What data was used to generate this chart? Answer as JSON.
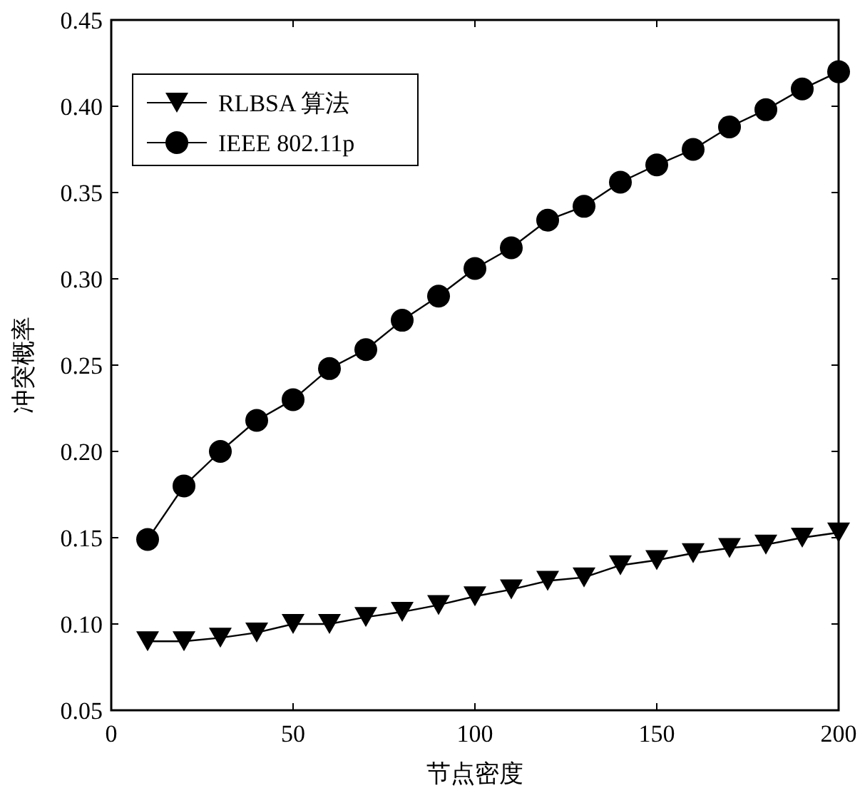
{
  "chart_data": {
    "type": "line",
    "xlabel": "节点密度",
    "ylabel": "冲突概率",
    "x": [
      10,
      20,
      30,
      40,
      50,
      60,
      70,
      80,
      90,
      100,
      110,
      120,
      130,
      140,
      150,
      160,
      170,
      180,
      190,
      200
    ],
    "series": [
      {
        "name": "RLBSA 算法",
        "color": "#000000",
        "marker": "triangle",
        "values": [
          0.09,
          0.09,
          0.092,
          0.095,
          0.1,
          0.1,
          0.104,
          0.107,
          0.111,
          0.116,
          0.12,
          0.125,
          0.127,
          0.134,
          0.137,
          0.141,
          0.144,
          0.146,
          0.15,
          0.153
        ]
      },
      {
        "name": "IEEE 802.11p",
        "color": "#000000",
        "marker": "circle",
        "values": [
          0.149,
          0.18,
          0.2,
          0.218,
          0.23,
          0.248,
          0.259,
          0.276,
          0.29,
          0.306,
          0.318,
          0.334,
          0.342,
          0.356,
          0.366,
          0.375,
          0.388,
          0.398,
          0.41,
          0.42
        ]
      }
    ],
    "xlim": [
      0,
      200
    ],
    "xticks": [
      0,
      50,
      100,
      150,
      200
    ],
    "ylim": [
      0.05,
      0.45
    ],
    "yticks": [
      {
        "value": 0.05,
        "label": "0.05"
      },
      {
        "value": 0.1,
        "label": "0.10"
      },
      {
        "value": 0.15,
        "label": "0.15"
      },
      {
        "value": 0.2,
        "label": "0.20"
      },
      {
        "value": 0.25,
        "label": "0.25"
      },
      {
        "value": 0.3,
        "label": "0.30"
      },
      {
        "value": 0.35,
        "label": "0.35"
      },
      {
        "value": 0.4,
        "label": "0.40"
      },
      {
        "value": 0.45,
        "label": "0.45"
      }
    ],
    "grid": false,
    "legend": "top left",
    "line_style": "solid"
  }
}
